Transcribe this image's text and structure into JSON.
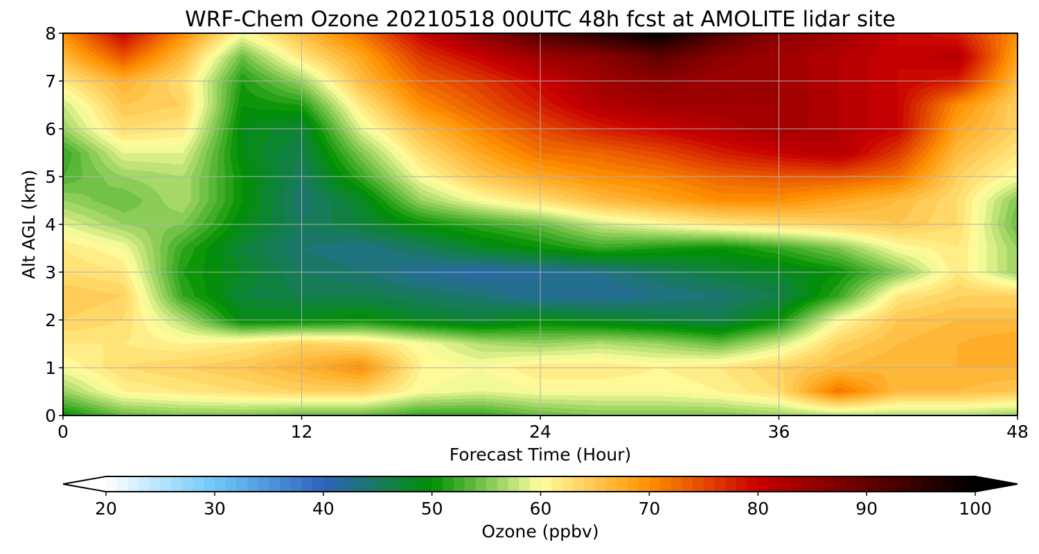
{
  "chart_data": {
    "type": "heatmap",
    "title": "WRF-Chem Ozone  20210518 00UTC 48h fcst at AMOLITE lidar site",
    "xlabel": "Forecast Time (Hour)",
    "ylabel": "Alt AGL (km)",
    "xlim": [
      0,
      48
    ],
    "ylim": [
      0,
      8
    ],
    "xticks": [
      0,
      12,
      24,
      36,
      48
    ],
    "yticks": [
      0,
      1,
      2,
      3,
      4,
      5,
      6,
      7,
      8
    ],
    "grid": true,
    "x": [
      0,
      3,
      6,
      9,
      12,
      15,
      18,
      21,
      24,
      27,
      30,
      33,
      36,
      39,
      42,
      45,
      48
    ],
    "y": [
      0,
      0.5,
      1,
      1.5,
      2,
      2.5,
      3,
      3.5,
      4,
      4.5,
      5,
      5.5,
      6,
      6.5,
      7,
      7.5,
      8
    ],
    "z_units": "ppbv",
    "z": [
      [
        50,
        54,
        55,
        55,
        54,
        54,
        52,
        52,
        54,
        55,
        55,
        55,
        56,
        57,
        57,
        57,
        56
      ],
      [
        56,
        61,
        62,
        63,
        64,
        64,
        60,
        59,
        60,
        60,
        60,
        61,
        63,
        72,
        66,
        66,
        65
      ],
      [
        60,
        63,
        64,
        65,
        67,
        70,
        61,
        60,
        62,
        62,
        61,
        62,
        64,
        66,
        67,
        67,
        67
      ],
      [
        62,
        62,
        61,
        62,
        64,
        63,
        60,
        57,
        56,
        57,
        56,
        54,
        58,
        64,
        66,
        67,
        68
      ],
      [
        64,
        63,
        57,
        49,
        49,
        50,
        48,
        47,
        49,
        48,
        47,
        46,
        50,
        60,
        65,
        66,
        66
      ],
      [
        65,
        64,
        52,
        47,
        46,
        46,
        45,
        44,
        42,
        42,
        43,
        44,
        46,
        52,
        62,
        64,
        64
      ],
      [
        63,
        62,
        51,
        48,
        45,
        44,
        42,
        41,
        42,
        43,
        45,
        47,
        48,
        50,
        55,
        62,
        56
      ],
      [
        62,
        60,
        52,
        47,
        44,
        43,
        45,
        48,
        50,
        52,
        51,
        50,
        52,
        55,
        60,
        62,
        56
      ],
      [
        59,
        56,
        55,
        49,
        45,
        47,
        50,
        52,
        54,
        58,
        60,
        62,
        63,
        64,
        65,
        63,
        54
      ],
      [
        56,
        54,
        57,
        50,
        44,
        48,
        56,
        60,
        63,
        66,
        68,
        70,
        70,
        68,
        66,
        63,
        55
      ],
      [
        53,
        56,
        57,
        50,
        45,
        52,
        60,
        65,
        68,
        70,
        71,
        73,
        74,
        74,
        72,
        64,
        60
      ],
      [
        52,
        59,
        59,
        49,
        46,
        55,
        63,
        68,
        72,
        73,
        75,
        78,
        80,
        82,
        76,
        66,
        62
      ],
      [
        56,
        63,
        62,
        49,
        47,
        59,
        66,
        71,
        75,
        78,
        80,
        82,
        84,
        82,
        80,
        68,
        64
      ],
      [
        58,
        65,
        64,
        50,
        51,
        62,
        70,
        74,
        78,
        82,
        84,
        84,
        84,
        82,
        80,
        70,
        64
      ],
      [
        62,
        67,
        63,
        51,
        56,
        66,
        73,
        76,
        80,
        84,
        86,
        84,
        84,
        82,
        80,
        78,
        66
      ],
      [
        66,
        74,
        66,
        54,
        62,
        68,
        76,
        80,
        84,
        86,
        90,
        86,
        84,
        82,
        80,
        82,
        68
      ],
      [
        70,
        80,
        70,
        60,
        66,
        72,
        80,
        86,
        92,
        96,
        100,
        92,
        86,
        84,
        80,
        78,
        70
      ]
    ],
    "colorbar": {
      "label": "Ozone  (ppbv)",
      "min": 20,
      "max": 100,
      "ticks": [
        20,
        30,
        40,
        50,
        60,
        70,
        80,
        90,
        100
      ],
      "extend": "both",
      "levels": 80,
      "colors": [
        "#ffffff",
        "#6ec8f8",
        "#2f63be",
        "#009000",
        "#ffff9f",
        "#ff9000",
        "#c80000",
        "#000000"
      ],
      "color_stops": [
        20,
        30,
        40,
        50,
        60,
        70,
        80,
        100
      ]
    }
  }
}
